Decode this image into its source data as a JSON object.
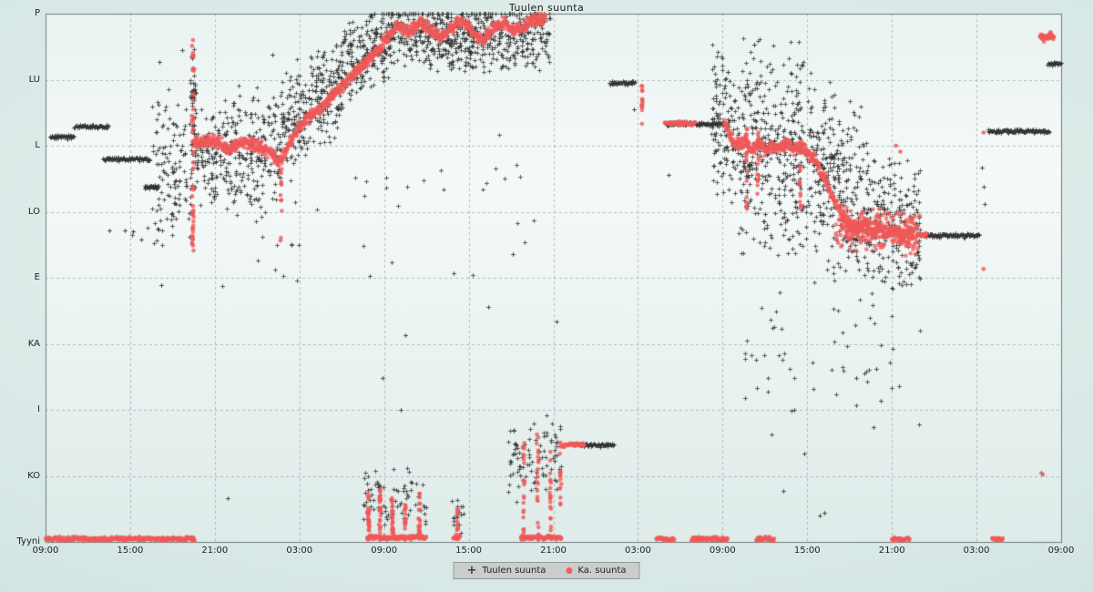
{
  "chart_data": {
    "type": "scatter",
    "title": "Tuulen suunta",
    "x_axis": {
      "unit": "time",
      "range_hours": [
        0,
        72
      ],
      "tick_interval_hours": 6,
      "tick_labels": [
        "09:00",
        "15:00",
        "21:00",
        "03:00",
        "09:00",
        "15:00",
        "21:00",
        "03:00",
        "09:00",
        "15:00",
        "21:00",
        "03:00",
        "09:00"
      ]
    },
    "y_axis": {
      "unit": "wind-direction-degrees",
      "range_degrees": [
        0,
        360
      ],
      "ticks": [
        {
          "label": "Tyyni",
          "value": 0
        },
        {
          "label": "KO",
          "value": 45
        },
        {
          "label": "I",
          "value": 90
        },
        {
          "label": "KA",
          "value": 135
        },
        {
          "label": "E",
          "value": 180
        },
        {
          "label": "LO",
          "value": 225
        },
        {
          "label": "L",
          "value": 270
        },
        {
          "label": "LU",
          "value": 315
        },
        {
          "label": "P",
          "value": 360
        }
      ]
    },
    "legend": {
      "items": [
        {
          "label": "Tuulen suunta",
          "marker": "plus",
          "color": "#4a4a4a"
        },
        {
          "label": "Ka. suunta",
          "marker": "dot",
          "color": "#f05c5c"
        }
      ]
    },
    "colors": {
      "wind_marker": "#3c3c3c",
      "avg_marker": "#f05c5c",
      "grid": "#7a9090",
      "plot_border": "#6e7e7e"
    },
    "series": [
      {
        "name": "Tuulen suunta",
        "marker": "plus",
        "color": "#3c3c3c",
        "line_runs_fields": [
          "h_start",
          "h_end",
          "deg"
        ],
        "line_runs": [
          [
            0.3,
            2.0,
            276
          ],
          [
            2.0,
            4.5,
            283
          ],
          [
            4.1,
            7.4,
            261
          ],
          [
            7.0,
            8.0,
            242
          ],
          [
            37.8,
            40.3,
            66
          ],
          [
            40.0,
            41.8,
            313
          ],
          [
            44.0,
            48.1,
            285
          ],
          [
            62.0,
            66.2,
            209
          ],
          [
            66.8,
            71.2,
            280
          ],
          [
            71.0,
            72.0,
            326
          ]
        ],
        "clouds_fields": [
          "h_start",
          "h_end",
          "deg_center_start",
          "deg_center_end",
          "spread",
          "n"
        ],
        "clouds": [
          [
            7.5,
            11.0,
            258,
            262,
            55,
            150
          ],
          [
            10.25,
            10.65,
            300,
            300,
            42,
            40
          ],
          [
            11.0,
            16.5,
            265,
            268,
            48,
            300
          ],
          [
            16.5,
            21.0,
            280,
            315,
            40,
            280
          ],
          [
            21.0,
            24.5,
            322,
            345,
            30,
            220
          ],
          [
            24.5,
            30.0,
            346,
            344,
            26,
            330
          ],
          [
            30.0,
            35.8,
            344,
            347,
            28,
            300
          ],
          [
            8.0,
            35.0,
            215,
            230,
            55,
            45
          ],
          [
            22.5,
            27.0,
            28,
            30,
            24,
            75
          ],
          [
            28.8,
            29.7,
            18,
            18,
            14,
            16
          ],
          [
            32.8,
            36.6,
            52,
            58,
            32,
            90
          ],
          [
            47.2,
            49.0,
            288,
            275,
            62,
            120
          ],
          [
            49.0,
            54.5,
            268,
            268,
            80,
            400
          ],
          [
            54.5,
            58.0,
            245,
            235,
            72,
            260
          ],
          [
            58.0,
            62.0,
            222,
            212,
            52,
            230
          ],
          [
            49.5,
            62.0,
            130,
            120,
            65,
            55
          ],
          [
            5.5,
            8.5,
            205,
            210,
            12,
            10
          ]
        ],
        "points_fields": [
          "h",
          "deg"
        ],
        "points": [
          [
            12.9,
            30
          ],
          [
            25.5,
            141
          ],
          [
            25.2,
            90
          ],
          [
            23.9,
            112
          ],
          [
            28.9,
            183
          ],
          [
            31.4,
            160
          ],
          [
            33.1,
            196
          ],
          [
            36.2,
            150
          ],
          [
            41.7,
            295
          ],
          [
            44.2,
            250
          ],
          [
            52.3,
            35
          ],
          [
            55.2,
            20
          ],
          [
            58.7,
            78
          ],
          [
            59.2,
            96
          ],
          [
            66.4,
            255
          ],
          [
            66.5,
            242
          ],
          [
            66.6,
            230
          ],
          [
            70.6,
            47
          ],
          [
            4.5,
            212
          ],
          [
            5.6,
            212
          ],
          [
            6.8,
            206
          ],
          [
            16.1,
            332
          ],
          [
            9.7,
            335
          ],
          [
            8.2,
            175
          ],
          [
            8.1,
            327
          ],
          [
            57.5,
            112
          ],
          [
            58.9,
            118
          ],
          [
            53.8,
            60
          ],
          [
            54.9,
            18
          ]
        ]
      },
      {
        "name": "Ka. suunta",
        "marker": "dot",
        "color": "#f05c5c",
        "line_runs_fields": [
          "h_start",
          "h_end",
          "deg"
        ],
        "line_runs": [
          [
            0.0,
            10.6,
            2
          ],
          [
            36.7,
            38.2,
            66
          ],
          [
            43.9,
            46.1,
            285
          ],
          [
            61.8,
            62.5,
            209
          ],
          [
            22.8,
            27.0,
            3
          ],
          [
            28.9,
            29.4,
            3
          ],
          [
            33.7,
            36.6,
            3
          ],
          [
            43.3,
            44.6,
            2
          ],
          [
            45.8,
            48.4,
            2
          ],
          [
            50.4,
            51.7,
            2
          ],
          [
            60.0,
            61.3,
            2
          ],
          [
            67.1,
            67.9,
            2
          ],
          [
            70.5,
            71.5,
            344
          ]
        ],
        "streaks_fields": [
          "h",
          "deg_start",
          "deg_end",
          "n"
        ],
        "streaks": [
          [
            10.45,
            195,
            345,
            50
          ],
          [
            16.7,
            205,
            265,
            16
          ],
          [
            22.9,
            1,
            36,
            26
          ],
          [
            23.7,
            1,
            40,
            26
          ],
          [
            24.6,
            1,
            30,
            22
          ],
          [
            25.5,
            1,
            26,
            18
          ],
          [
            26.5,
            1,
            34,
            22
          ],
          [
            29.2,
            1,
            24,
            14
          ],
          [
            33.9,
            1,
            70,
            22
          ],
          [
            34.9,
            1,
            74,
            22
          ],
          [
            35.8,
            1,
            62,
            20
          ],
          [
            36.5,
            20,
            70,
            16
          ],
          [
            42.3,
            282,
            314,
            14
          ],
          [
            49.7,
            225,
            282,
            20
          ],
          [
            50.5,
            236,
            286,
            18
          ],
          [
            53.5,
            226,
            272,
            16
          ]
        ],
        "paths_fields": [
          "[h,deg] control points"
        ],
        "paths": [
          {
            "width_deg": 5,
            "dots_per_hour": 42,
            "pts": [
              [
                10.5,
                272
              ],
              [
                12,
                274
              ],
              [
                13,
                268
              ],
              [
                14,
                272
              ],
              [
                15,
                270
              ],
              [
                16,
                265
              ],
              [
                16.6,
                258
              ],
              [
                17.2,
                270
              ],
              [
                18,
                283
              ],
              [
                18.8,
                290
              ],
              [
                19.6,
                296
              ],
              [
                20.4,
                305
              ],
              [
                21.2,
                312
              ],
              [
                22,
                320
              ],
              [
                22.8,
                328
              ],
              [
                23.6,
                335
              ],
              [
                24.3,
                345
              ],
              [
                25,
                352
              ],
              [
                25.8,
                347
              ],
              [
                26.5,
                354
              ],
              [
                27.2,
                350
              ],
              [
                28,
                343
              ],
              [
                28.7,
                350
              ],
              [
                29.5,
                356
              ],
              [
                30.2,
                348
              ],
              [
                31,
                342
              ],
              [
                31.7,
                350
              ],
              [
                32.5,
                355
              ],
              [
                33.2,
                348
              ],
              [
                34,
                352
              ],
              [
                34.7,
                356
              ],
              [
                35.5,
                357
              ]
            ]
          },
          {
            "width_deg": 5,
            "dots_per_hour": 42,
            "pts": [
              [
                48.1,
                287
              ],
              [
                48.6,
                275
              ],
              [
                49.1,
                270
              ],
              [
                49.6,
                274
              ],
              [
                50.1,
                268
              ],
              [
                50.6,
                272
              ],
              [
                51.1,
                266
              ],
              [
                51.6,
                271
              ],
              [
                52.1,
                268
              ],
              [
                52.6,
                273
              ],
              [
                53.1,
                267
              ],
              [
                53.6,
                270
              ],
              [
                54.1,
                265
              ],
              [
                54.6,
                260
              ],
              [
                55.1,
                250
              ],
              [
                55.6,
                240
              ],
              [
                56.1,
                230
              ],
              [
                56.6,
                222
              ],
              [
                57.1,
                216
              ],
              [
                57.6,
                212
              ],
              [
                58.1,
                218
              ],
              [
                58.6,
                210
              ],
              [
                59.1,
                215
              ],
              [
                59.6,
                208
              ],
              [
                60.1,
                213
              ],
              [
                60.6,
                207
              ],
              [
                61.1,
                212
              ],
              [
                61.6,
                209
              ]
            ]
          },
          {
            "width_deg": 3,
            "dots_per_hour": 30,
            "pts": [
              [
                70.6,
                346
              ],
              [
                70.9,
                342
              ],
              [
                71.2,
                347
              ],
              [
                71.5,
                344
              ]
            ]
          }
        ],
        "clouds_fields": [
          "h_start",
          "h_end",
          "deg_center_start",
          "deg_center_end",
          "spread",
          "n"
        ],
        "clouds": [
          [
            56.0,
            62.0,
            214,
            210,
            16,
            240
          ]
        ],
        "points_fields": [
          "h",
          "deg"
        ],
        "points": [
          [
            66.5,
            186
          ],
          [
            66.5,
            279
          ],
          [
            70.7,
            46
          ],
          [
            60.3,
            270
          ],
          [
            60.6,
            266
          ]
        ]
      }
    ]
  }
}
